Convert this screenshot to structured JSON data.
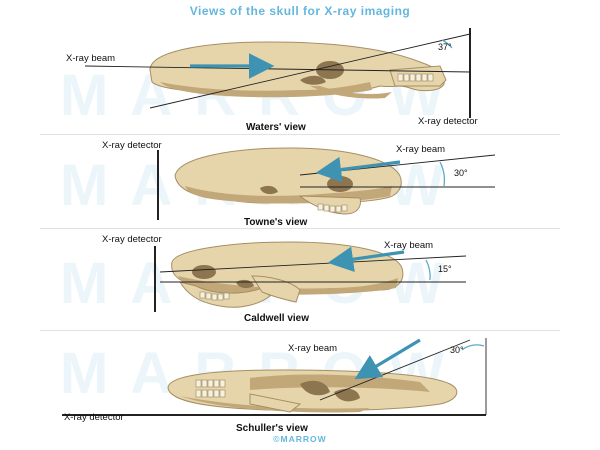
{
  "title": "Views of the skull for X-ray imaging",
  "brand": "©MARROW",
  "watermark": "MARROW",
  "colors": {
    "title": "#63b7dd",
    "arrow": "#3e93b2",
    "bone": "#e6d5ab",
    "bone_shade": "#c2a878",
    "bone_dark": "#8d7550",
    "line": "#222222",
    "angle_arc": "#5aaac9",
    "watermark": "#dbeef6",
    "divider": "#e1e1e1"
  },
  "views": [
    {
      "caption": "Waters' view",
      "beam_label": "X-ray beam",
      "detector_label": "X-ray detector",
      "angle": "37°"
    },
    {
      "caption": "Towne's view",
      "beam_label": "X-ray beam",
      "detector_label": "X-ray detector",
      "angle": "30°"
    },
    {
      "caption": "Caldwell view",
      "beam_label": "X-ray beam",
      "detector_label": "X-ray detector",
      "angle": "15°"
    },
    {
      "caption": "Schuller's view",
      "beam_label": "X-ray beam",
      "detector_label": "X-ray detector",
      "angle": "30°"
    }
  ]
}
